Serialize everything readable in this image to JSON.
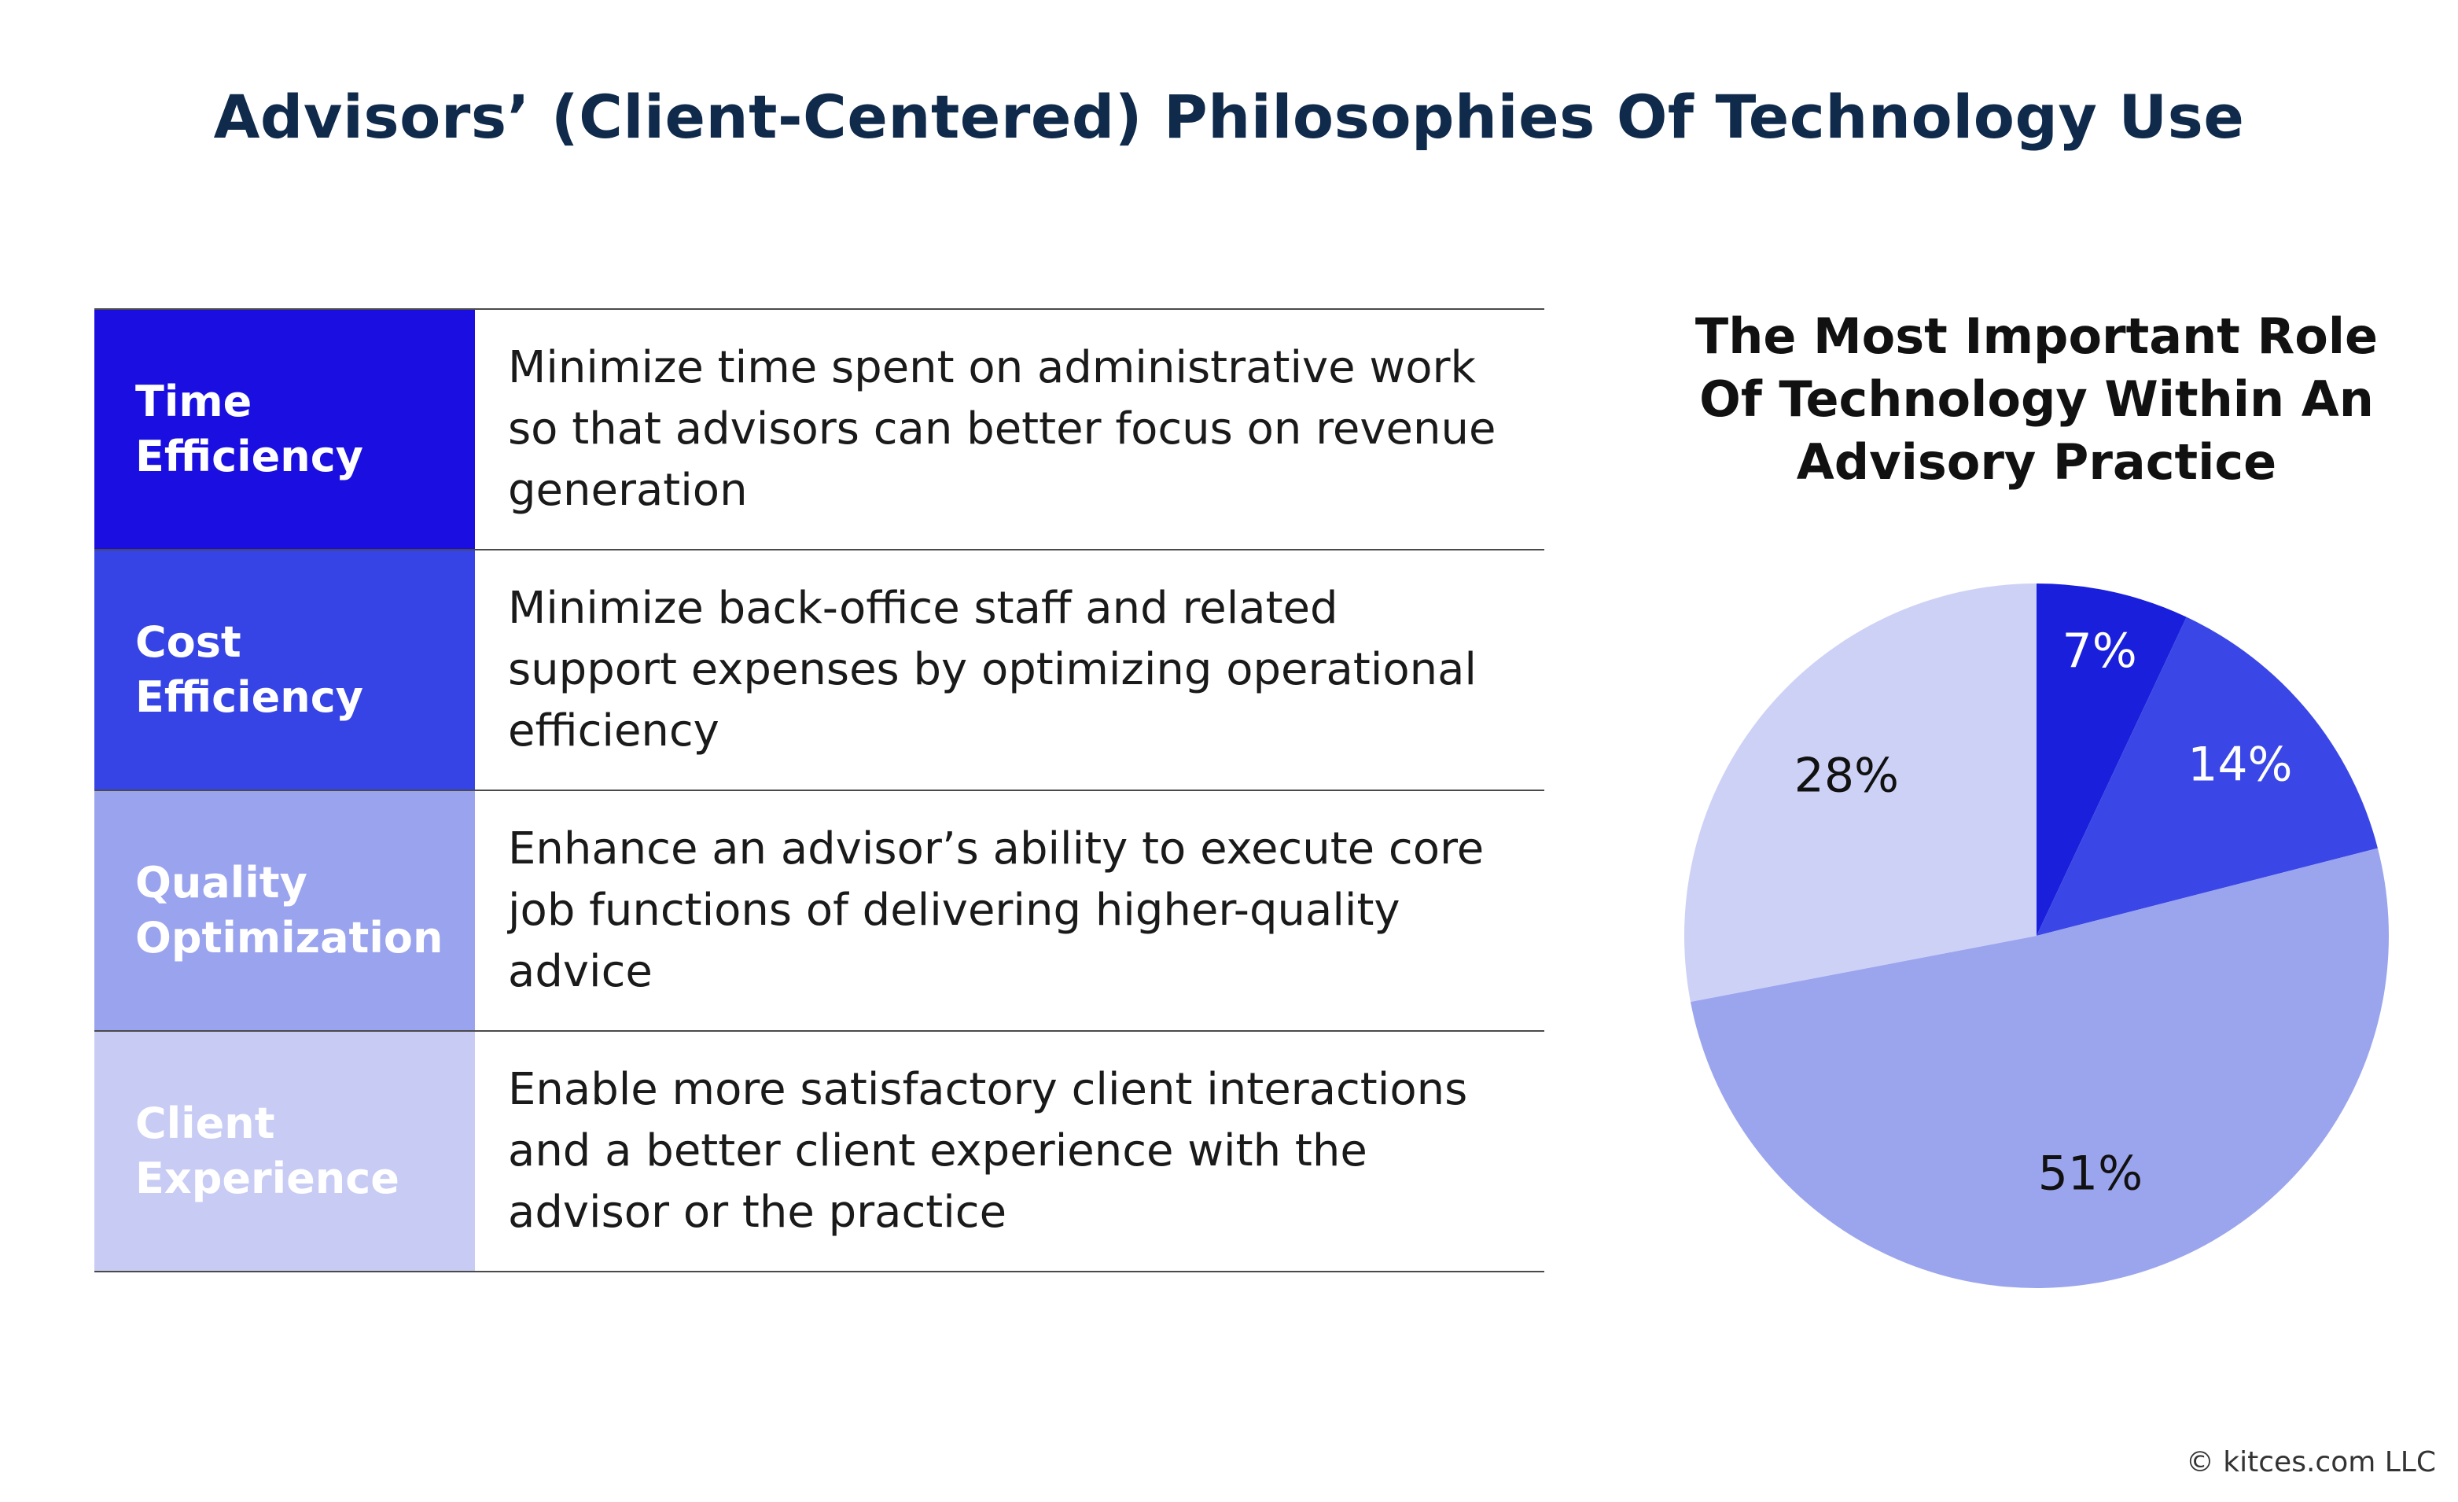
{
  "title": "Advisors’ (Client-Centered) Philosophies Of Technology Use",
  "table": {
    "rows": [
      {
        "label": "Time\nEfficiency",
        "description": "Minimize time spent on administrative work so that advisors can better focus on revenue generation",
        "color": "#1a0fe0"
      },
      {
        "label": "Cost\n Efficiency",
        "description": "Minimize back-office staff and related support expenses by optimizing operational efficiency",
        "color": "#3644e6"
      },
      {
        "label": "Quality\nOptimization",
        "description": "Enhance an advisor’s ability to execute core job functions of delivering higher-quality advice",
        "color": "#9aa3ee"
      },
      {
        "label": "Client\nExperience",
        "description": "Enable more satisfactory client interactions and a better client experience with the advisor or the practice",
        "color": "#c8ccf4"
      }
    ]
  },
  "chart_data": {
    "type": "pie",
    "title": "The Most Important Role Of Technology Within An Advisory Practice",
    "slices": [
      {
        "category": "Time Efficiency",
        "value": 7,
        "label": "7%",
        "color": "#1a1fdc",
        "label_color": "#ffffff"
      },
      {
        "category": "Cost Efficiency",
        "value": 14,
        "label": "14%",
        "color": "#3a47e6",
        "label_color": "#ffffff"
      },
      {
        "category": "Quality Optimization",
        "value": 51,
        "label": "51%",
        "color": "#9ba5ee",
        "label_color": "#111111"
      },
      {
        "category": "Client Experience",
        "value": 28,
        "label": "28%",
        "color": "#cdd1f6",
        "label_color": "#111111"
      }
    ],
    "start_angle": "12 o'clock",
    "direction": "clockwise"
  },
  "copyright": "© kitces.com LLC"
}
